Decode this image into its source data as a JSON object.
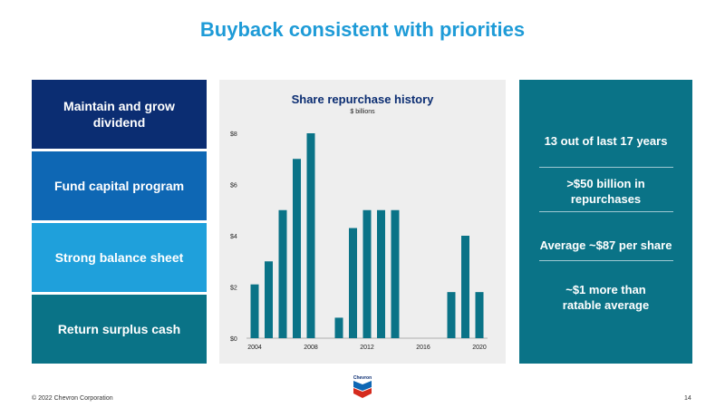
{
  "slide": {
    "title": "Buyback consistent with priorities",
    "footer": "© 2022 Chevron Corporation",
    "page_number": "14",
    "logo_text": "Chevron"
  },
  "priorities": [
    "Maintain and grow dividend",
    "Fund capital program",
    "Strong balance sheet",
    "Return surplus cash"
  ],
  "facts": [
    "13 out of last 17 years",
    ">$50 billion in repurchases",
    "Average ~$87 per share",
    "~$1 more than ratable average"
  ],
  "colors": {
    "title": "#1E9BD7",
    "bar": "#0A7387",
    "priority_1": "#0B2D72",
    "priority_2": "#0E67B4",
    "priority_3": "#1FA0DB",
    "priority_4": "#0A7387",
    "facts_panel": "#0A7387"
  },
  "chart_data": {
    "type": "bar",
    "title": "Share repurchase history",
    "subtitle": "$ billions",
    "x": [
      2004,
      2005,
      2006,
      2007,
      2008,
      2009,
      2010,
      2011,
      2012,
      2013,
      2014,
      2015,
      2016,
      2017,
      2018,
      2019,
      2020
    ],
    "values": [
      2.1,
      3.0,
      5.0,
      7.0,
      8.0,
      0,
      0.8,
      4.3,
      5.0,
      5.0,
      5.0,
      0,
      0,
      0,
      1.8,
      4.0,
      1.8
    ],
    "x_tick_labels": [
      "2004",
      "2008",
      "2012",
      "2016",
      "2020"
    ],
    "y_tick_labels": [
      "$0",
      "$2",
      "$4",
      "$6",
      "$8"
    ],
    "y_ticks": [
      0,
      2,
      4,
      6,
      8
    ],
    "ylim": [
      0,
      8
    ],
    "grid": false,
    "legend": "none"
  }
}
